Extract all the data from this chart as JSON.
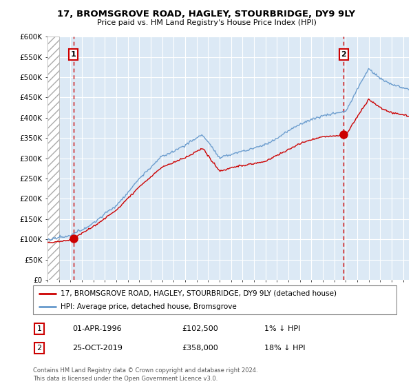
{
  "title_line1": "17, BROMSGROVE ROAD, HAGLEY, STOURBRIDGE, DY9 9LY",
  "title_line2": "Price paid vs. HM Land Registry's House Price Index (HPI)",
  "ylim": [
    0,
    600000
  ],
  "yticks": [
    0,
    50000,
    100000,
    150000,
    200000,
    250000,
    300000,
    350000,
    400000,
    450000,
    500000,
    550000,
    600000
  ],
  "ytick_labels": [
    "£0",
    "£50K",
    "£100K",
    "£150K",
    "£200K",
    "£250K",
    "£300K",
    "£350K",
    "£400K",
    "£450K",
    "£500K",
    "£550K",
    "£600K"
  ],
  "plot_bg_color": "#dce9f5",
  "fig_bg_color": "#ffffff",
  "grid_color": "#ffffff",
  "hpi_color": "#6699cc",
  "price_color": "#cc0000",
  "marker_color": "#cc0000",
  "sale1_t": 1996.25,
  "sale1_p": 102500,
  "sale2_t": 2019.82,
  "sale2_p": 358000,
  "legend_label1": "17, BROMSGROVE ROAD, HAGLEY, STOURBRIDGE, DY9 9LY (detached house)",
  "legend_label2": "HPI: Average price, detached house, Bromsgrove",
  "annotation1_label": "1",
  "annotation2_label": "2",
  "footer1": "Contains HM Land Registry data © Crown copyright and database right 2024.",
  "footer2": "This data is licensed under the Open Government Licence v3.0.",
  "info1_num": "1",
  "info1_date": "01-APR-1996",
  "info1_price": "£102,500",
  "info1_hpi": "1% ↓ HPI",
  "info2_num": "2",
  "info2_date": "25-OCT-2019",
  "info2_price": "£358,000",
  "info2_hpi": "18% ↓ HPI"
}
